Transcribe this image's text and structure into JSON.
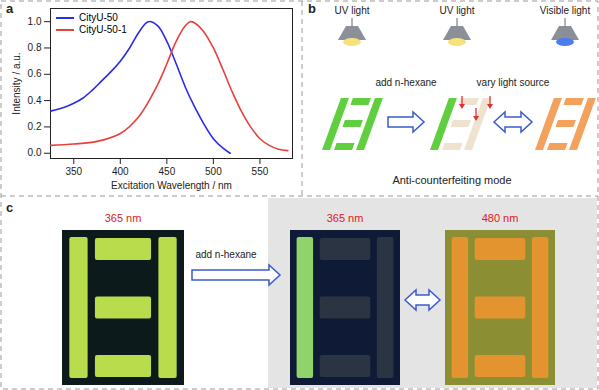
{
  "chart_data": {
    "type": "line",
    "x_label": "Excitation Wavelength / nm",
    "y_label": "Intensity / a.u.",
    "xlim": [
      325,
      585
    ],
    "xticks": [
      350,
      400,
      450,
      500,
      550
    ],
    "ylim": [
      -0.04,
      1.1
    ],
    "yticks": [
      {
        "value": 0,
        "label": "0.0"
      },
      {
        "value": 0.2,
        "label": "0.2"
      },
      {
        "value": 0.4,
        "label": "0.4"
      },
      {
        "value": 0.6,
        "label": "0.6"
      },
      {
        "value": 0.8,
        "label": "0.8"
      },
      {
        "value": 1,
        "label": "1.0"
      }
    ],
    "grid": false,
    "legend": "upper left",
    "series": [
      {
        "name": "CityU-50",
        "color": "#2b2bea",
        "x": [
          325,
          340,
          350,
          360,
          370,
          380,
          390,
          400,
          410,
          420,
          430,
          440,
          450,
          460,
          470,
          480,
          490,
          500,
          510,
          518
        ],
        "values": [
          0.32,
          0.35,
          0.38,
          0.42,
          0.48,
          0.55,
          0.62,
          0.7,
          0.8,
          0.92,
          1.0,
          0.97,
          0.85,
          0.68,
          0.5,
          0.35,
          0.22,
          0.11,
          0.04,
          0.0
        ]
      },
      {
        "name": "CityU-50-1",
        "color": "#e8413c",
        "x": [
          325,
          350,
          375,
          400,
          420,
          440,
          450,
          460,
          470,
          475,
          480,
          490,
          500,
          510,
          520,
          530,
          540,
          550,
          560,
          570,
          580
        ],
        "values": [
          0.06,
          0.07,
          0.09,
          0.15,
          0.28,
          0.52,
          0.68,
          0.85,
          0.97,
          1.0,
          0.99,
          0.92,
          0.8,
          0.64,
          0.47,
          0.32,
          0.2,
          0.11,
          0.06,
          0.03,
          0.02
        ]
      }
    ]
  },
  "panel_a": {
    "label": "a"
  },
  "panel_b": {
    "label": "b",
    "light_sources": [
      "UV light",
      "UV light",
      "Visible light"
    ],
    "step_1": "add n-hexane",
    "step_2": "vary light source",
    "caption": "Anti-counterfeiting mode"
  },
  "panel_c": {
    "label": "c",
    "step": "add n-hexane",
    "photos": [
      {
        "excitation": "365 nm"
      },
      {
        "excitation": "365 nm"
      },
      {
        "excitation": "480 nm"
      }
    ]
  }
}
